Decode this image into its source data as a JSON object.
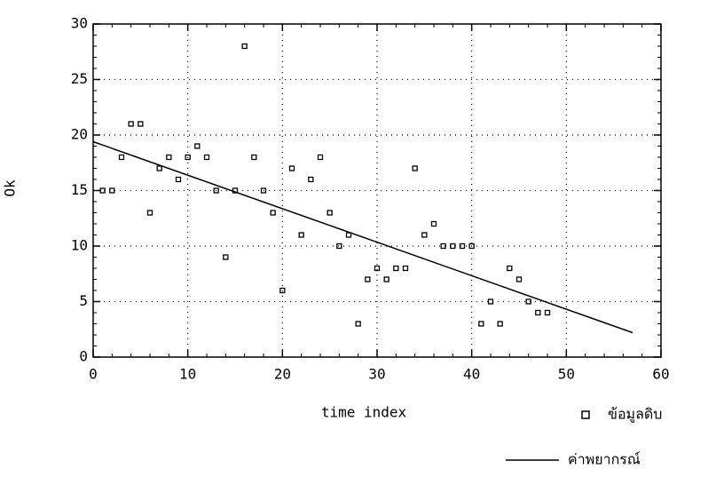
{
  "chart_data": {
    "type": "scatter",
    "x_label": "time index",
    "y_label": "Ok",
    "xlim": [
      0,
      60
    ],
    "xticks": [
      0,
      10,
      20,
      30,
      40,
      50,
      60
    ],
    "ylim": [
      0,
      30
    ],
    "yticks": [
      0,
      5,
      10,
      15,
      20,
      25,
      30
    ],
    "grid": true,
    "series": [
      {
        "name": "ข้อมูลดิบ",
        "color": "#000000",
        "marker": "square",
        "x": [
          1,
          2,
          3,
          4,
          5,
          6,
          7,
          8,
          9,
          10,
          11,
          12,
          13,
          14,
          15,
          16,
          17,
          18,
          19,
          20,
          21,
          22,
          23,
          24,
          25,
          26,
          27,
          28,
          29,
          30,
          31,
          32,
          33,
          34,
          35,
          36,
          37,
          38,
          39,
          40,
          41,
          42,
          43,
          44,
          45,
          46,
          47,
          48
        ],
        "values": [
          15,
          15,
          18,
          21,
          21,
          13,
          17,
          18,
          16,
          18,
          19,
          18,
          15,
          9,
          15,
          28,
          18,
          15,
          13,
          6,
          17,
          11,
          16,
          18,
          13,
          10,
          11,
          3,
          7,
          8,
          7,
          8,
          8,
          17,
          11,
          12,
          10,
          10,
          10,
          10,
          3,
          5,
          3,
          8,
          7,
          5,
          4,
          4
        ]
      },
      {
        "name": "ค่าพยากรณ์",
        "color": "#000000",
        "marker": "line",
        "x": [
          0,
          57
        ],
        "values": [
          19.4,
          2.2
        ]
      }
    ]
  }
}
